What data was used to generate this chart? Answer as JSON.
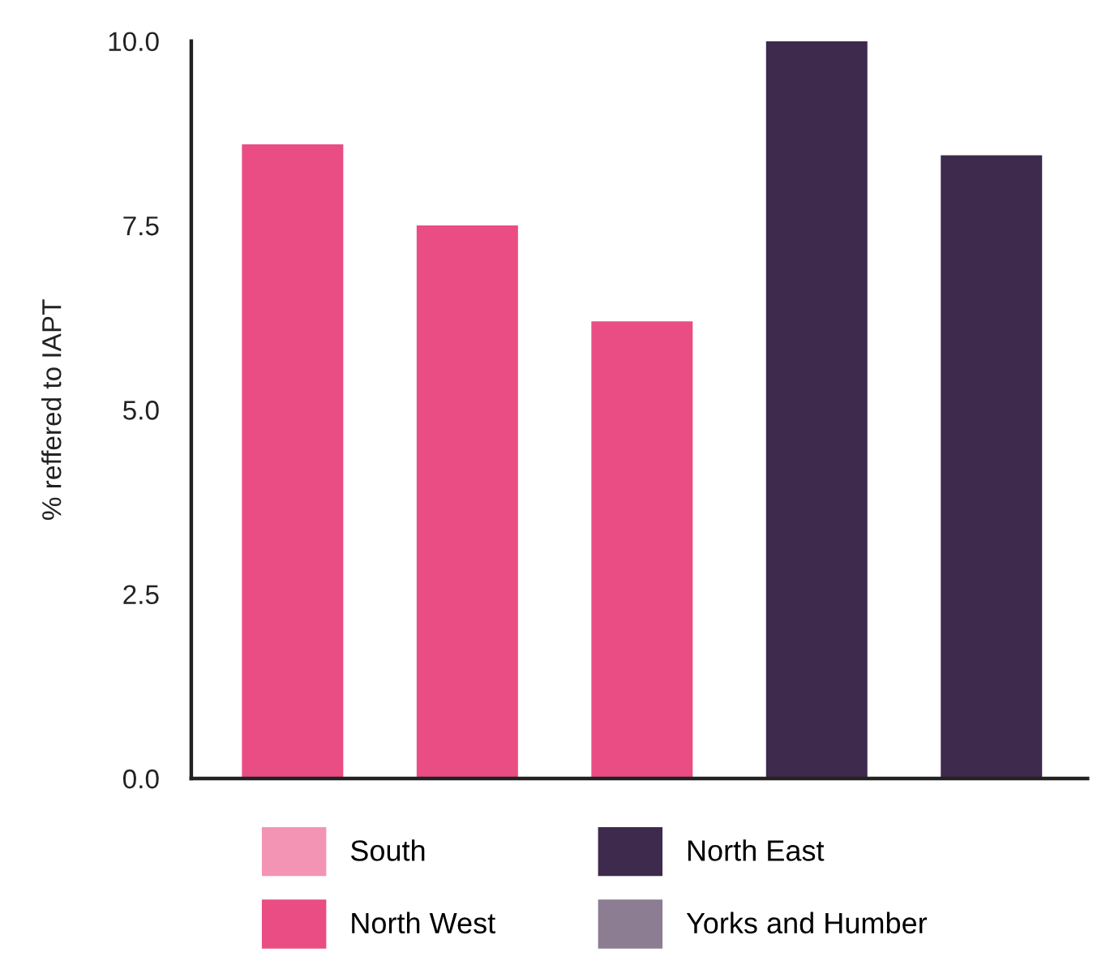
{
  "chart_data": {
    "type": "bar",
    "ylabel": "% reffered to IAPT",
    "categories": [
      null,
      null,
      null,
      null,
      null
    ],
    "series": [
      {
        "name": "South",
        "color": "#f394b4",
        "values": [
          null,
          null,
          null,
          null,
          null
        ]
      },
      {
        "name": "North West",
        "color": "#e94d83",
        "values": [
          8.6,
          7.5,
          6.2,
          null,
          null
        ]
      },
      {
        "name": "North East",
        "color": "#3e2a4d",
        "values": [
          null,
          null,
          null,
          10.0,
          8.45
        ]
      },
      {
        "name": "Yorks and Humber",
        "color": "#8c7d93",
        "values": [
          null,
          null,
          null,
          null,
          null
        ]
      }
    ],
    "ylim": [
      0,
      10
    ],
    "yticks": [
      {
        "value": 0,
        "label": "0.0"
      },
      {
        "value": 2.5,
        "label": "2.5"
      },
      {
        "value": 5,
        "label": "5.0"
      },
      {
        "value": 7.5,
        "label": "7.5"
      },
      {
        "value": 10,
        "label": "10.0"
      }
    ],
    "grid": false,
    "legend": "bottom"
  }
}
